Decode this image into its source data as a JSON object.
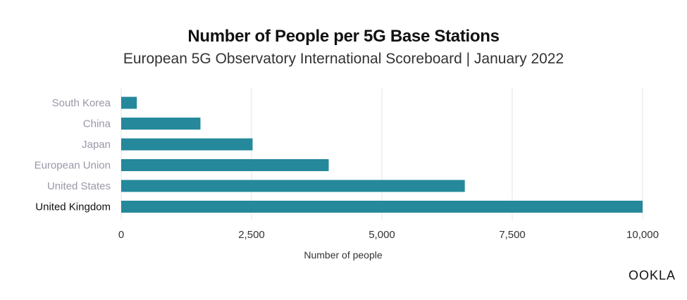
{
  "chart_data": {
    "type": "bar",
    "orientation": "horizontal",
    "title": "Number of People per 5G Base Stations",
    "subtitle": "European 5G Observatory International Scoreboard | January 2022",
    "categories": [
      "South Korea",
      "China",
      "Japan",
      "European Union",
      "United States",
      "United Kingdom"
    ],
    "values": [
      300,
      1520,
      2520,
      3980,
      6590,
      10000
    ],
    "highlighted_category": "United Kingdom",
    "xlabel": "Number of people",
    "ylabel": "",
    "xlim": [
      0,
      10000
    ],
    "x_ticks": [
      0,
      2500,
      5000,
      7500,
      10000
    ],
    "x_tick_labels": [
      "0",
      "2,500",
      "5,000",
      "7,500",
      "10,000"
    ],
    "grid": "vertical",
    "legend": "none"
  },
  "colors": {
    "bar": "#25889b",
    "grid": "#e4e4e4",
    "category_label": "#9a97a8",
    "highlight_label": "#111111",
    "tick_label": "#333333"
  },
  "logo": {
    "text": "OOKLA"
  }
}
